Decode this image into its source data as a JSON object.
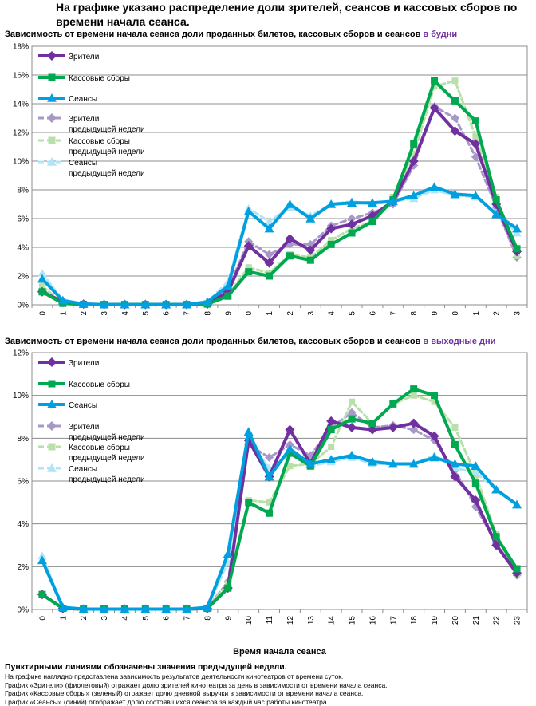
{
  "main_title": "На графике указано распределение доли зрителей, сеансов и кассовых сборов по времени начала сеанса.",
  "chart_data": [
    {
      "id": "weekday",
      "type": "line",
      "title": "Зависимость от времени начала сеанса доли проданных билетов, кассовых сборов и сеансов",
      "title_accent": "в будни",
      "xlabel": "Время начала сеанса",
      "ylabel": "",
      "ylim": [
        0,
        18
      ],
      "ystep": 2,
      "ytick_suffix": "%",
      "x": [
        0,
        1,
        2,
        3,
        4,
        5,
        6,
        7,
        8,
        9,
        10,
        11,
        12,
        13,
        14,
        15,
        16,
        17,
        18,
        19,
        20,
        21,
        22,
        23
      ],
      "legend": [
        "Зрители",
        "Кассовые сборы",
        "Сеансы",
        "Зрители предыдущей недели",
        "Кассовые сборы предыдущей недели",
        "Сеансы предыдущей недели"
      ],
      "series": [
        {
          "name": "Зрители",
          "color": "#7030a0",
          "style": "solid",
          "marker": "diamond",
          "values": [
            0.9,
            0.2,
            0.05,
            0.02,
            0.02,
            0.02,
            0.02,
            0.02,
            0.05,
            0.9,
            4.1,
            2.9,
            4.6,
            3.8,
            5.3,
            5.6,
            6.2,
            7.2,
            10.0,
            13.7,
            12.1,
            11.2,
            7.0,
            3.7
          ]
        },
        {
          "name": "Кассовые сборы",
          "color": "#00a84f",
          "style": "solid",
          "marker": "square",
          "values": [
            0.9,
            0.1,
            0.03,
            0.02,
            0.02,
            0.02,
            0.02,
            0.02,
            0.05,
            0.6,
            2.3,
            2.0,
            3.4,
            3.1,
            4.2,
            5.0,
            5.8,
            7.3,
            11.2,
            15.6,
            14.2,
            12.8,
            7.3,
            3.9
          ]
        },
        {
          "name": "Сеансы",
          "color": "#00a0e0",
          "style": "solid",
          "marker": "triangle",
          "values": [
            1.8,
            0.3,
            0.05,
            0.02,
            0.02,
            0.02,
            0.02,
            0.02,
            0.2,
            1.3,
            6.5,
            5.3,
            7.0,
            6.0,
            7.0,
            7.1,
            7.1,
            7.2,
            7.6,
            8.2,
            7.7,
            7.6,
            6.3,
            5.3
          ]
        },
        {
          "name": "Зрители предыдущей недели",
          "color": "#a898c8",
          "style": "dashed",
          "marker": "diamond",
          "values": [
            1.0,
            0.2,
            0.05,
            0.02,
            0.02,
            0.02,
            0.02,
            0.02,
            0.05,
            1.1,
            4.4,
            3.5,
            4.2,
            4.2,
            5.5,
            6.0,
            6.4,
            7.0,
            9.7,
            13.8,
            13.0,
            10.3,
            6.8,
            3.3
          ]
        },
        {
          "name": "Кассовые сборы предыдущей недели",
          "color": "#b8e0a8",
          "style": "dashed",
          "marker": "square",
          "values": [
            1.3,
            0.1,
            0.03,
            0.02,
            0.02,
            0.02,
            0.02,
            0.02,
            0.05,
            0.7,
            2.6,
            2.2,
            3.5,
            3.3,
            4.5,
            5.3,
            5.8,
            7.5,
            10.5,
            15.2,
            15.6,
            11.7,
            7.5,
            3.4
          ]
        },
        {
          "name": "Сеансы предыдущей недели",
          "color": "#b0e4f8",
          "style": "dashed",
          "marker": "triangle",
          "values": [
            2.2,
            0.3,
            0.05,
            0.02,
            0.02,
            0.02,
            0.02,
            0.02,
            0.2,
            1.6,
            6.7,
            5.8,
            6.8,
            6.2,
            7.0,
            7.2,
            7.0,
            7.2,
            7.4,
            8.0,
            7.6,
            7.5,
            6.4,
            5.0
          ]
        }
      ]
    },
    {
      "id": "weekend",
      "type": "line",
      "title": "Зависимость от времени начала сеанса доли проданных билетов, кассовых сборов и сеансов",
      "title_accent": "в выходные дни",
      "xlabel": "Время начала сеанса",
      "ylabel": "",
      "ylim": [
        0,
        12
      ],
      "ystep": 2,
      "ytick_suffix": "%",
      "x": [
        0,
        1,
        2,
        3,
        4,
        5,
        6,
        7,
        8,
        9,
        10,
        11,
        12,
        13,
        14,
        15,
        16,
        17,
        18,
        19,
        20,
        21,
        22,
        23
      ],
      "legend": [
        "Зрители",
        "Кассовые сборы",
        "Сеансы",
        "Зрители предыдущей недели",
        "Кассовые сборы предыдущей недели",
        "Сеансы предыдущей недели"
      ],
      "series": [
        {
          "name": "Зрители",
          "color": "#7030a0",
          "style": "solid",
          "marker": "diamond",
          "values": [
            0.7,
            0.05,
            0.02,
            0.02,
            0.02,
            0.02,
            0.02,
            0.02,
            0.05,
            1.0,
            7.9,
            6.2,
            8.4,
            6.8,
            8.8,
            8.5,
            8.4,
            8.5,
            8.7,
            8.1,
            6.2,
            5.1,
            3.0,
            1.7
          ]
        },
        {
          "name": "Кассовые сборы",
          "color": "#00a84f",
          "style": "solid",
          "marker": "square",
          "values": [
            0.7,
            0.05,
            0.02,
            0.02,
            0.02,
            0.02,
            0.02,
            0.02,
            0.05,
            1.0,
            5.0,
            4.5,
            7.3,
            6.7,
            8.4,
            8.9,
            8.7,
            9.6,
            10.3,
            10.0,
            7.7,
            5.9,
            3.4,
            1.9
          ]
        },
        {
          "name": "Сеансы",
          "color": "#00a0e0",
          "style": "solid",
          "marker": "triangle",
          "values": [
            2.3,
            0.1,
            0.02,
            0.02,
            0.02,
            0.02,
            0.02,
            0.02,
            0.1,
            2.6,
            8.3,
            6.2,
            7.5,
            6.8,
            7.0,
            7.2,
            6.9,
            6.8,
            6.8,
            7.1,
            6.8,
            6.7,
            5.6,
            4.9
          ]
        },
        {
          "name": "Зрители предыдущей недели",
          "color": "#a898c8",
          "style": "dashed",
          "marker": "diamond",
          "values": [
            0.7,
            0.05,
            0.02,
            0.02,
            0.02,
            0.02,
            0.02,
            0.02,
            0.05,
            1.3,
            7.7,
            7.1,
            7.7,
            7.2,
            8.5,
            9.2,
            8.5,
            8.6,
            8.4,
            7.9,
            6.5,
            4.8,
            3.1,
            1.6
          ]
        },
        {
          "name": "Кассовые сборы предыдущей недели",
          "color": "#b8e0a8",
          "style": "dashed",
          "marker": "square",
          "values": [
            0.7,
            0.05,
            0.02,
            0.02,
            0.02,
            0.02,
            0.02,
            0.02,
            0.05,
            1.2,
            5.1,
            5.0,
            6.7,
            6.8,
            7.6,
            9.7,
            8.7,
            9.6,
            10.0,
            9.7,
            8.5,
            6.3,
            3.5,
            1.6
          ]
        },
        {
          "name": "Сеансы предыдущей недели",
          "color": "#b0e4f8",
          "style": "dashed",
          "marker": "triangle",
          "values": [
            2.5,
            0.1,
            0.02,
            0.02,
            0.02,
            0.02,
            0.02,
            0.02,
            0.1,
            2.2,
            7.9,
            6.6,
            7.3,
            6.7,
            6.9,
            7.1,
            6.8,
            6.8,
            6.8,
            7.2,
            6.6,
            6.4,
            5.6,
            4.9
          ]
        }
      ]
    }
  ],
  "notes": {
    "heading": "Пунктирными линиями обозначены значения предыдущей недели.",
    "lines": [
      "На графике наглядно представлена зависимость результатов деятельности кинотеатров от времени суток.",
      "График «Зрители» (фиолетовый) отражает долю зрителей кинотеатра за день в зависимости от времени начала сеанса.",
      "График «Кассовые сборы» (зеленый) отражает долю дневной выручки в зависимости от времени начала сеанса.",
      "График «Сеансы» (синий) отображает долю состоявшихся сеансов за каждый час работы кинотеатра."
    ]
  }
}
